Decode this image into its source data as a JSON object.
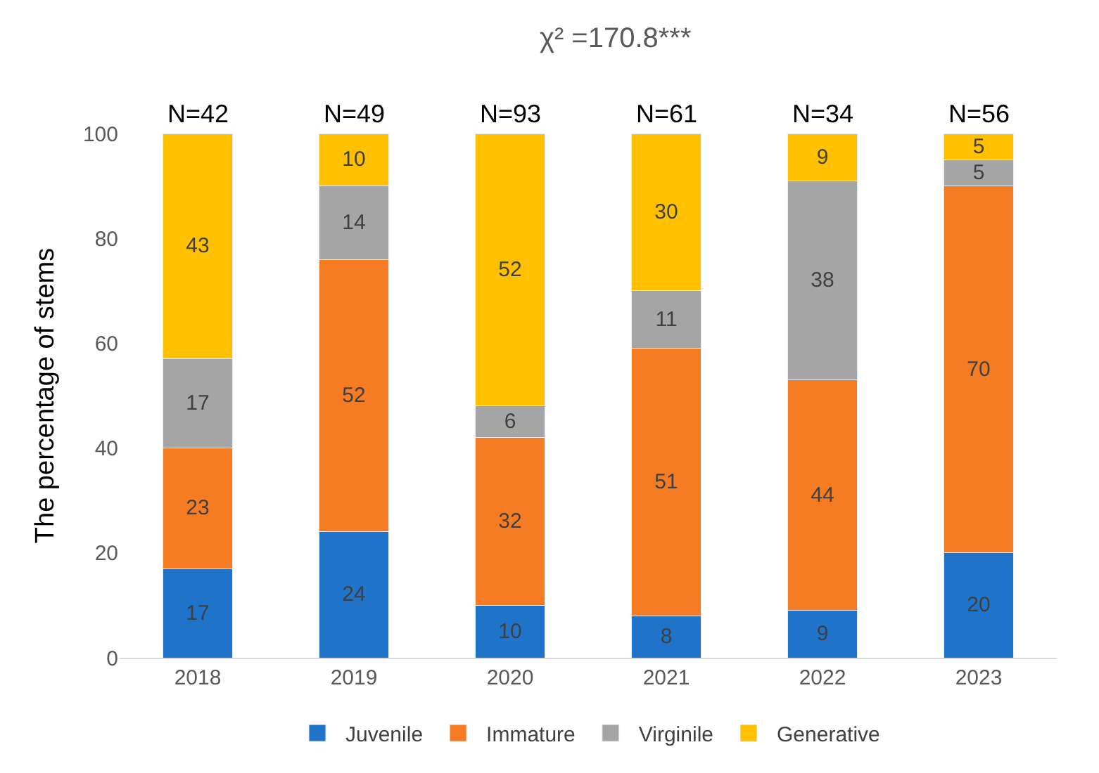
{
  "chart_data": {
    "type": "bar",
    "title": "χ² =170.8***",
    "ylabel": "The percentage of stems",
    "categories": [
      "2018",
      "2019",
      "2020",
      "2021",
      "2022",
      "2023"
    ],
    "series": [
      {
        "name": "Juvenile",
        "color": "#1f73c8",
        "values": [
          17,
          24,
          10,
          8,
          9,
          20
        ]
      },
      {
        "name": "Immature",
        "color": "#f57c22",
        "values": [
          23,
          52,
          32,
          51,
          44,
          70
        ]
      },
      {
        "name": "Virginile",
        "color": "#a5a5a5",
        "values": [
          17,
          14,
          6,
          11,
          38,
          5
        ]
      },
      {
        "name": "Generative",
        "color": "#ffc000",
        "values": [
          43,
          10,
          52,
          30,
          9,
          5
        ]
      }
    ],
    "stacked": true,
    "data_labels": true,
    "ylim": [
      0,
      100
    ],
    "yticks": [
      0,
      20,
      40,
      60,
      80,
      100
    ],
    "grid": false,
    "legend": "bottom",
    "annotations": [
      "N=42",
      "N=49",
      "N=93",
      "N=61",
      "N=34",
      "N=56"
    ]
  }
}
